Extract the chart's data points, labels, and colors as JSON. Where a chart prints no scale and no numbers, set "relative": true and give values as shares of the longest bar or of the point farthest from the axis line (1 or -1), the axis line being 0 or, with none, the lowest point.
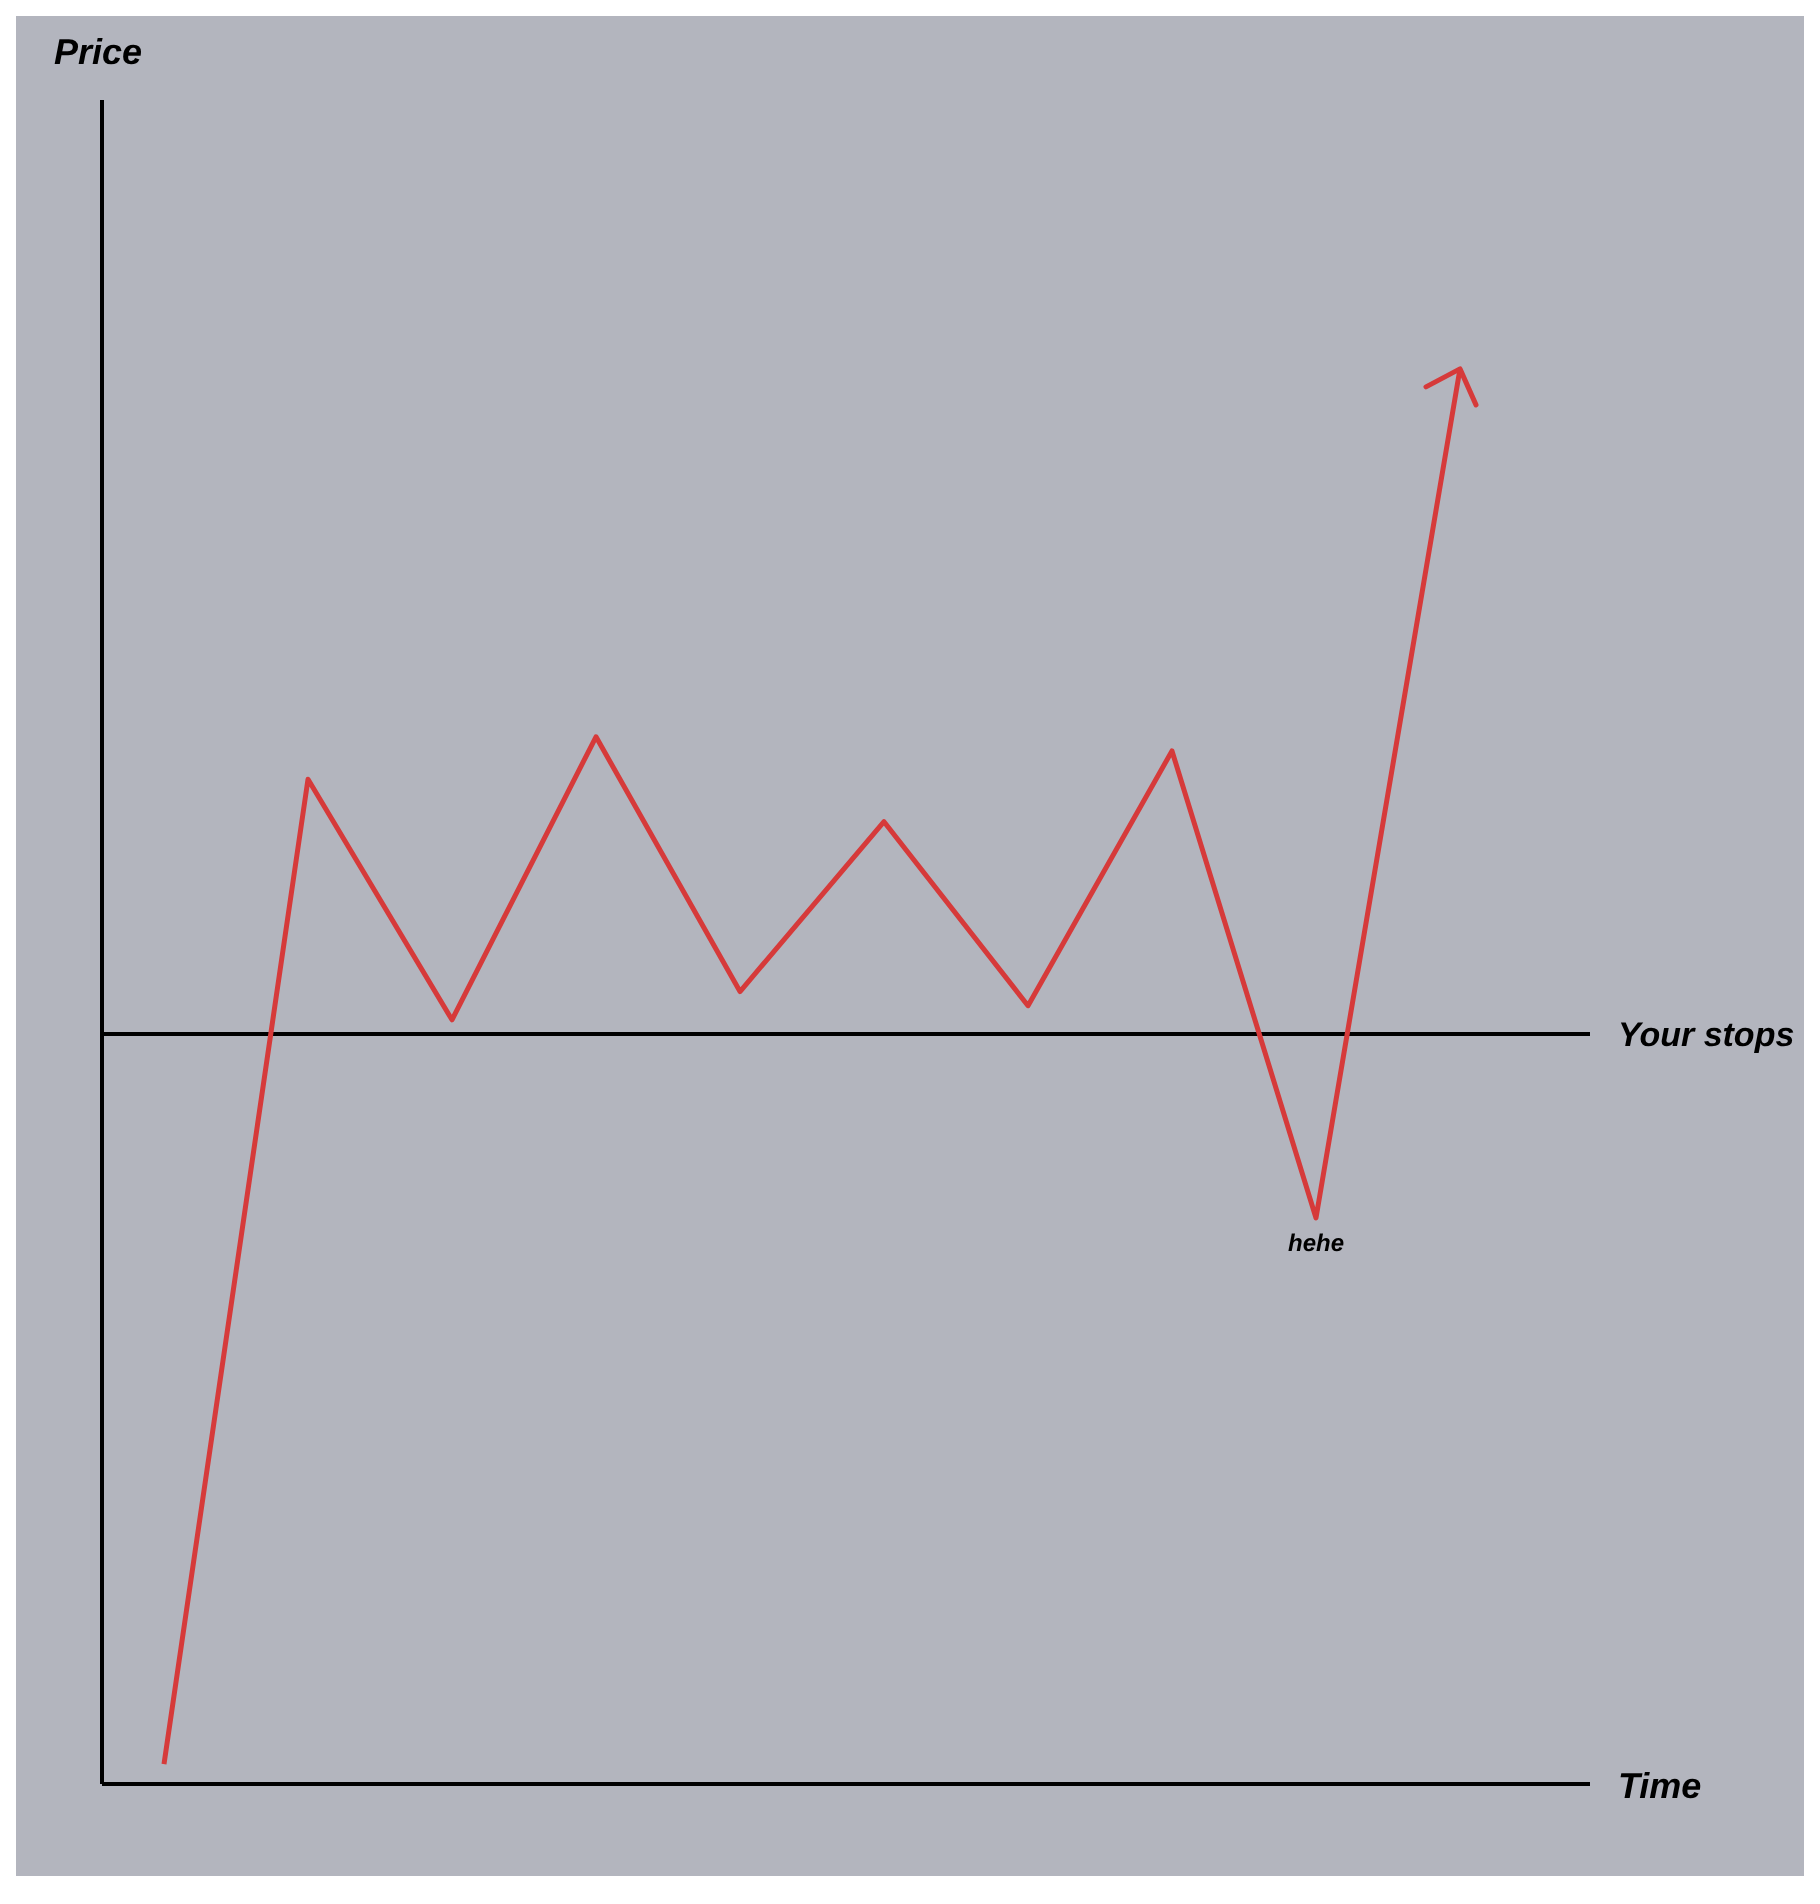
{
  "chart_data": {
    "type": "line",
    "relative": true,
    "xlabel": "Time",
    "categories": [
      null,
      null,
      null,
      null,
      null,
      null,
      null,
      null,
      null,
      null
    ],
    "series": [
      {
        "color": "#d63a3a",
        "values": [
          0.014,
          0.71,
          0.54,
          0.74,
          0.56,
          0.68,
          0.55,
          0.73,
          0.4,
          1
        ]
      }
    ],
    "ref_lines": [
      {
        "axis": "y",
        "value": 0.53,
        "label": "Your stops",
        "color": "#000000",
        "line_style": "solid"
      }
    ],
    "annotations": [
      "Price",
      {
        "text": "hehe",
        "y": 0.4
      }
    ],
    "marker": "none",
    "grid": false
  }
}
